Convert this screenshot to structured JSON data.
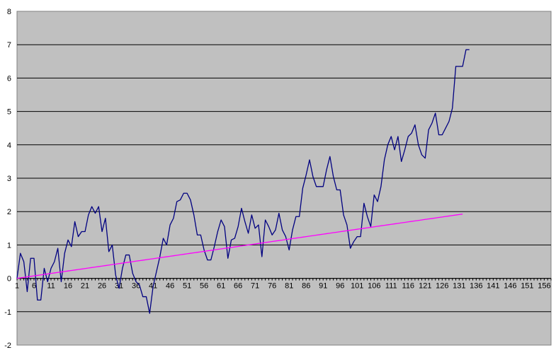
{
  "chart_data": {
    "type": "line",
    "title": "",
    "xlabel": "",
    "ylabel": "",
    "ylim": [
      -2,
      8
    ],
    "xlim": [
      1,
      158
    ],
    "y_ticks": [
      -2,
      -1,
      0,
      1,
      2,
      3,
      4,
      5,
      6,
      7,
      8
    ],
    "x_ticks": [
      1,
      6,
      11,
      16,
      21,
      26,
      31,
      36,
      41,
      46,
      51,
      56,
      61,
      66,
      71,
      76,
      81,
      86,
      91,
      96,
      101,
      106,
      111,
      116,
      121,
      126,
      131,
      136,
      141,
      146,
      151,
      156
    ],
    "grid": "horizontal",
    "legend": "none",
    "colors": {
      "plot_background": "#c0c0c0",
      "gridline": "#000000",
      "series_1": "#000080",
      "series_2": "#ff00ff"
    },
    "series": [
      {
        "values": [
          0,
          0.75,
          0.5,
          -0.4,
          0.6,
          0.6,
          -0.65,
          -0.65,
          0.3,
          -0.1,
          0.3,
          0.5,
          0.9,
          -0.1,
          0.75,
          1.15,
          0.95,
          1.7,
          1.25,
          1.4,
          1.4,
          1.9,
          2.15,
          1.95,
          2.15,
          1.4,
          1.8,
          0.8,
          1.0,
          0.1,
          -0.3,
          0.3,
          0.7,
          0.7,
          0.15,
          -0.1,
          -0.2,
          -0.55,
          -0.55,
          -1.05,
          -0.25,
          0.2,
          0.65,
          1.2,
          1.0,
          1.6,
          1.8,
          2.3,
          2.35,
          2.55,
          2.55,
          2.35,
          1.9,
          1.3,
          1.3,
          0.85,
          0.55,
          0.55,
          0.95,
          1.4,
          1.75,
          1.55,
          0.6,
          1.15,
          1.2,
          1.55,
          2.1,
          1.7,
          1.35,
          1.9,
          1.5,
          1.6,
          0.65,
          1.75,
          1.55,
          1.3,
          1.45,
          1.95,
          1.45,
          1.25,
          0.85,
          1.45,
          1.85,
          1.85,
          2.7,
          3.1,
          3.55,
          3.05,
          2.75,
          2.75,
          2.75,
          3.25,
          3.65,
          3.05,
          2.65,
          2.65,
          1.9,
          1.6,
          0.9,
          1.1,
          1.25,
          1.25,
          2.25,
          1.85,
          1.55,
          2.5,
          2.3,
          2.75,
          3.55,
          4.0,
          4.25,
          3.85,
          4.25,
          3.5,
          3.85,
          4.25,
          4.35,
          4.6,
          4.0,
          3.7,
          3.6,
          4.45,
          4.65,
          4.95,
          4.3,
          4.3,
          4.5,
          4.7,
          5.1,
          6.35,
          6.35,
          6.35,
          6.85,
          6.85
        ]
      },
      {
        "values": [
          0,
          0.015,
          0.029,
          0.044,
          0.059,
          0.074,
          0.088,
          0.103,
          0.118,
          0.132,
          0.147,
          0.162,
          0.176,
          0.191,
          0.206,
          0.221,
          0.235,
          0.25,
          0.265,
          0.279,
          0.294,
          0.309,
          0.324,
          0.338,
          0.353,
          0.368,
          0.382,
          0.397,
          0.412,
          0.426,
          0.441,
          0.456,
          0.471,
          0.485,
          0.5,
          0.515,
          0.529,
          0.544,
          0.559,
          0.574,
          0.588,
          0.603,
          0.618,
          0.632,
          0.647,
          0.662,
          0.676,
          0.691,
          0.706,
          0.721,
          0.735,
          0.75,
          0.765,
          0.779,
          0.794,
          0.809,
          0.824,
          0.838,
          0.853,
          0.868,
          0.882,
          0.897,
          0.912,
          0.926,
          0.941,
          0.956,
          0.971,
          0.985,
          1.0,
          1.015,
          1.029,
          1.044,
          1.059,
          1.074,
          1.088,
          1.103,
          1.118,
          1.132,
          1.147,
          1.162,
          1.176,
          1.191,
          1.206,
          1.221,
          1.235,
          1.25,
          1.265,
          1.279,
          1.294,
          1.309,
          1.324,
          1.338,
          1.353,
          1.368,
          1.382,
          1.397,
          1.412,
          1.426,
          1.441,
          1.456,
          1.471,
          1.485,
          1.5,
          1.515,
          1.529,
          1.544,
          1.559,
          1.574,
          1.588,
          1.603,
          1.618,
          1.632,
          1.647,
          1.662,
          1.676,
          1.691,
          1.706,
          1.721,
          1.735,
          1.75,
          1.765,
          1.779,
          1.794,
          1.809,
          1.824,
          1.838,
          1.853,
          1.868,
          1.882,
          1.897,
          1.912,
          1.926
        ]
      }
    ]
  }
}
